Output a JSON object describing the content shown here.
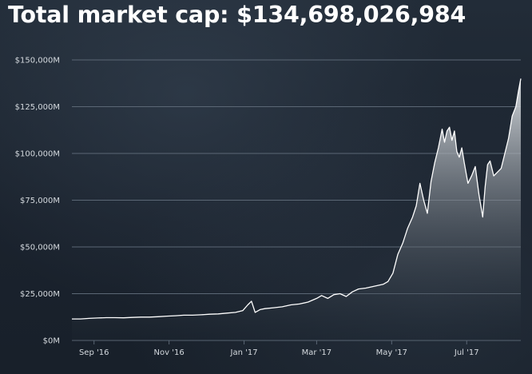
{
  "title": "Total market cap: $134,698,026,984",
  "colors": {
    "line": "#ffffff",
    "grid": "#5b6775",
    "area_top": "#dfe3e7",
    "area_bottom": "#1e2833"
  },
  "chart_data": {
    "type": "area",
    "title": "Total market cap: $134,698,026,984",
    "xlabel": "",
    "ylabel": "",
    "x_ticks": [
      "Sep '16",
      "Nov '16",
      "Jan '17",
      "Mar '17",
      "May '17",
      "Jul '17"
    ],
    "y_ticks": [
      "$0M",
      "$25,000M",
      "$50,000M",
      "$75,000M",
      "$100,000M",
      "$125,000M",
      "$150,000M"
    ],
    "ylim": [
      0,
      150000
    ],
    "grid": true,
    "series": [
      {
        "values_unit": "million USD",
        "x": [
          "2016-08-14",
          "2016-08-21",
          "2016-08-28",
          "2016-09-04",
          "2016-09-11",
          "2016-09-18",
          "2016-09-25",
          "2016-10-02",
          "2016-10-09",
          "2016-10-16",
          "2016-10-23",
          "2016-10-30",
          "2016-11-06",
          "2016-11-13",
          "2016-11-20",
          "2016-11-27",
          "2016-12-04",
          "2016-12-11",
          "2016-12-18",
          "2016-12-25",
          "2016-12-31",
          "2017-01-04",
          "2017-01-07",
          "2017-01-10",
          "2017-01-14",
          "2017-01-18",
          "2017-01-25",
          "2017-02-01",
          "2017-02-08",
          "2017-02-15",
          "2017-02-22",
          "2017-03-01",
          "2017-03-05",
          "2017-03-10",
          "2017-03-15",
          "2017-03-20",
          "2017-03-25",
          "2017-03-30",
          "2017-04-04",
          "2017-04-10",
          "2017-04-17",
          "2017-04-24",
          "2017-04-28",
          "2017-05-02",
          "2017-05-06",
          "2017-05-10",
          "2017-05-14",
          "2017-05-18",
          "2017-05-21",
          "2017-05-24",
          "2017-05-27",
          "2017-05-30",
          "2017-06-02",
          "2017-06-05",
          "2017-06-08",
          "2017-06-11",
          "2017-06-13",
          "2017-06-15",
          "2017-06-17",
          "2017-06-19",
          "2017-06-21",
          "2017-06-23",
          "2017-06-25",
          "2017-06-27",
          "2017-06-29",
          "2017-07-02",
          "2017-07-05",
          "2017-07-08",
          "2017-07-11",
          "2017-07-14",
          "2017-07-16",
          "2017-07-18",
          "2017-07-20",
          "2017-07-23",
          "2017-07-26",
          "2017-07-29",
          "2017-08-01",
          "2017-08-04",
          "2017-08-07",
          "2017-08-10",
          "2017-08-12",
          "2017-08-14"
        ],
        "values": [
          11500,
          11500,
          11800,
          12000,
          12200,
          12200,
          12100,
          12300,
          12500,
          12500,
          12700,
          13000,
          13200,
          13500,
          13500,
          13700,
          14000,
          14200,
          14600,
          15000,
          16000,
          19000,
          21000,
          15000,
          16500,
          17000,
          17500,
          18000,
          19000,
          19500,
          20500,
          22500,
          24000,
          22500,
          24500,
          25000,
          23500,
          26000,
          27500,
          28000,
          29000,
          30000,
          31500,
          36000,
          46000,
          52000,
          60000,
          66000,
          72000,
          84000,
          75000,
          68000,
          85000,
          95000,
          103000,
          113000,
          106000,
          112000,
          114000,
          107000,
          112000,
          101000,
          98000,
          103000,
          95000,
          84000,
          88000,
          93000,
          78000,
          66000,
          82000,
          94000,
          96000,
          88000,
          90000,
          92000,
          100000,
          108000,
          120000,
          125000,
          133000,
          140000
        ]
      }
    ]
  }
}
